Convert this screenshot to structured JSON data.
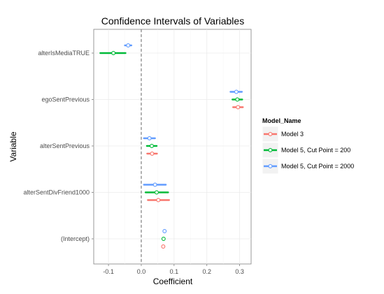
{
  "chart_data": {
    "type": "scatter",
    "title": "Confidence Intervals of Variables",
    "xlabel": "Coefficient",
    "ylabel": "Variable",
    "xlim": [
      -0.145,
      0.335
    ],
    "xticks": [
      -0.1,
      0.0,
      0.1,
      0.2,
      0.3
    ],
    "xtick_labels": [
      "-0.1",
      "0.0",
      "0.1",
      "0.2",
      "0.3"
    ],
    "reference_line_x": 0,
    "categories": [
      "alterIsMediaTRUE",
      "egoSentPrevious",
      "alterSentPrevious",
      "alterSentDivFriend1000",
      "(Intercept)"
    ],
    "legend_title": "Model_Name",
    "legend_position": "right",
    "grid": true,
    "series": [
      {
        "name": "Model 3",
        "color": "#F8766D",
        "points": [
          {
            "variable": "egoSentPrevious",
            "estimate": 0.295,
            "low": 0.28,
            "high": 0.31
          },
          {
            "variable": "alterSentPrevious",
            "estimate": 0.033,
            "low": 0.018,
            "high": 0.048
          },
          {
            "variable": "alterSentDivFriend1000",
            "estimate": 0.052,
            "low": 0.02,
            "high": 0.085
          },
          {
            "variable": "(Intercept)",
            "estimate": 0.067,
            "low": 0.067,
            "high": 0.067
          }
        ]
      },
      {
        "name": "Model 5, Cut Point = 200",
        "color": "#00BA38",
        "points": [
          {
            "variable": "alterIsMediaTRUE",
            "estimate": -0.085,
            "low": -0.125,
            "high": -0.048
          },
          {
            "variable": "egoSentPrevious",
            "estimate": 0.293,
            "low": 0.278,
            "high": 0.308
          },
          {
            "variable": "alterSentPrevious",
            "estimate": 0.032,
            "low": 0.017,
            "high": 0.047
          },
          {
            "variable": "alterSentDivFriend1000",
            "estimate": 0.047,
            "low": 0.013,
            "high": 0.082
          },
          {
            "variable": "(Intercept)",
            "estimate": 0.068,
            "low": 0.068,
            "high": 0.068
          }
        ]
      },
      {
        "name": "Model 5, Cut Point = 2000",
        "color": "#619CFF",
        "points": [
          {
            "variable": "alterIsMediaTRUE",
            "estimate": -0.04,
            "low": -0.05,
            "high": -0.03
          },
          {
            "variable": "egoSentPrevious",
            "estimate": 0.29,
            "low": 0.272,
            "high": 0.307
          },
          {
            "variable": "alterSentPrevious",
            "estimate": 0.025,
            "low": 0.008,
            "high": 0.042
          },
          {
            "variable": "alterSentDivFriend1000",
            "estimate": 0.042,
            "low": 0.008,
            "high": 0.075
          },
          {
            "variable": "(Intercept)",
            "estimate": 0.071,
            "low": 0.071,
            "high": 0.071
          }
        ]
      }
    ]
  }
}
